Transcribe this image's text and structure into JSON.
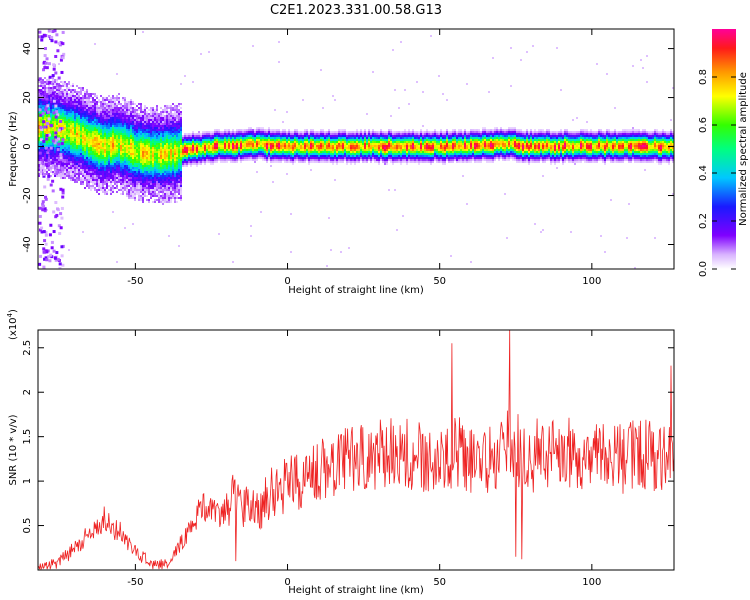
{
  "title": "C2E1.2023.331.00.58.G13",
  "chart_data": [
    {
      "type": "heatmap",
      "xlabel": "Height of straight line (km)",
      "ylabel": "Frequency (Hz)",
      "xlim": [
        -82,
        127
      ],
      "ylim": [
        -50,
        48
      ],
      "x_ticks": [
        -50,
        0,
        50,
        100
      ],
      "y_ticks": [
        -40,
        -20,
        0,
        20,
        40
      ],
      "grid": false,
      "colorbar": {
        "label": "Normalized spectral amplitude",
        "range": [
          0,
          1
        ],
        "ticks": [
          0.0,
          0.2,
          0.4,
          0.6,
          0.8
        ],
        "colormap": "rainbow (white-purple-blue-cyan-green-yellow-orange-red-magenta)"
      },
      "ridge": {
        "description": "dominant frequency ridge vs height",
        "x": [
          -78,
          -72,
          -66,
          -60,
          -55,
          -50,
          -45,
          -40,
          -35,
          -30,
          -25,
          -20,
          -10,
          0,
          10,
          20,
          30,
          40,
          50,
          60,
          70,
          80,
          90,
          100,
          110,
          120,
          127
        ],
        "y": [
          8,
          6,
          3,
          0,
          1,
          -2,
          -3,
          -3,
          -2,
          -1,
          0,
          0,
          1,
          0,
          0,
          0,
          0,
          0,
          0,
          0,
          1,
          0,
          0,
          0,
          0,
          0,
          0
        ]
      }
    },
    {
      "type": "line",
      "xlabel": "Height of straight line (km)",
      "ylabel": "SNR (10 * v/v)",
      "y_multiplier": "(x10",
      "y_multiplier_exp": "4",
      "y_multiplier_close": ")",
      "xlim": [
        -82,
        127
      ],
      "ylim": [
        0,
        2.7
      ],
      "x_ticks": [
        -50,
        0,
        50,
        100
      ],
      "y_ticks": [
        0.5,
        1.0,
        1.5,
        2.0,
        2.5
      ],
      "color": "#ee2222",
      "grid": false,
      "series": [
        {
          "x": [
            -82,
            -78,
            -74,
            -70,
            -66,
            -62,
            -60,
            -58,
            -55,
            -52,
            -50,
            -47,
            -44,
            -40,
            -37,
            -34,
            -31,
            -28,
            -25,
            -22,
            -20,
            -18,
            -16,
            -12,
            -8,
            -4,
            0,
            4,
            8,
            12,
            16,
            20,
            25,
            30,
            35,
            40,
            45,
            50,
            55,
            60,
            65,
            70,
            74,
            78,
            82,
            86,
            90,
            95,
            100,
            105,
            110,
            115,
            120,
            125,
            127
          ],
          "y": [
            0.02,
            0.05,
            0.12,
            0.25,
            0.38,
            0.5,
            0.58,
            0.48,
            0.42,
            0.3,
            0.2,
            0.12,
            0.05,
            0.06,
            0.18,
            0.35,
            0.55,
            0.7,
            0.68,
            0.62,
            0.72,
            0.8,
            0.7,
            0.72,
            0.75,
            0.9,
            0.95,
            1.0,
            1.1,
            1.15,
            1.2,
            1.25,
            1.3,
            1.3,
            1.35,
            1.32,
            1.25,
            1.2,
            1.35,
            1.25,
            1.2,
            1.3,
            1.45,
            1.2,
            1.3,
            1.25,
            1.35,
            1.28,
            1.3,
            1.32,
            1.25,
            1.3,
            1.28,
            1.3,
            1.5
          ]
        }
      ],
      "spikes": {
        "x": [
          -19,
          -17,
          54,
          73,
          75,
          77,
          126
        ],
        "y": [
          0.7,
          0.1,
          2.55,
          2.7,
          0.15,
          0.12,
          2.3
        ]
      }
    }
  ]
}
